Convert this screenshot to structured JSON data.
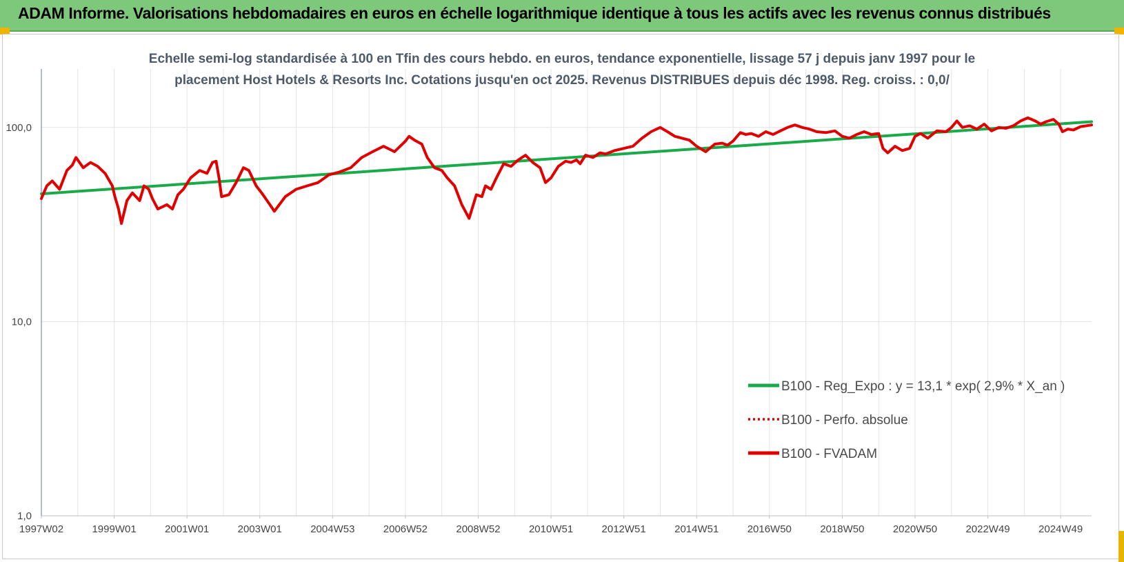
{
  "header": {
    "title": "ADAM Informe. Valorisations hebdomadaires en euros en échelle logarithmique identique à tous les actifs avec les revenus connus distribués",
    "background": "#7dc87a"
  },
  "chart_data": {
    "type": "line",
    "title_lines": [
      "Echelle semi-log standardisée à 100 en Tfin des cours hebdo. en euros, tendance exponentielle, lissage 57 j depuis janv 1997 pour le",
      "placement Host Hotels & Resorts Inc. Cotations jusqu'en oct 2025. Revenus DISTRIBUES depuis déc 1998. Reg. croiss. : 0,0/"
    ],
    "y_scale": "log",
    "ylim": [
      1,
      200
    ],
    "xlim": [
      1997.0,
      2025.85
    ],
    "y_ticks": [
      {
        "value": 1,
        "label": "1,0"
      },
      {
        "value": 10,
        "label": "10,0"
      },
      {
        "value": 100,
        "label": "100,0"
      }
    ],
    "x_ticks": [
      {
        "value": 1997.0,
        "label": "1997W02"
      },
      {
        "value": 1999.0,
        "label": "1999W01"
      },
      {
        "value": 2001.0,
        "label": "2001W01"
      },
      {
        "value": 2003.0,
        "label": "2003W01"
      },
      {
        "value": 2005.0,
        "label": "2004W53"
      },
      {
        "value": 2007.0,
        "label": "2006W52"
      },
      {
        "value": 2009.0,
        "label": "2008W52"
      },
      {
        "value": 2011.0,
        "label": "2010W51"
      },
      {
        "value": 2013.0,
        "label": "2012W51"
      },
      {
        "value": 2015.0,
        "label": "2014W51"
      },
      {
        "value": 2017.0,
        "label": "2016W50"
      },
      {
        "value": 2019.0,
        "label": "2018W50"
      },
      {
        "value": 2021.0,
        "label": "2020W50"
      },
      {
        "value": 2023.0,
        "label": "2022W49"
      },
      {
        "value": 2025.0,
        "label": "2024W49"
      }
    ],
    "grid": true,
    "legend_position": "bottom-right",
    "series": [
      {
        "name": "B100 - Reg_Expo : y = 13,1 * exp( 2,9% *  X_an )",
        "color": "#1aaa4a",
        "style": "solid",
        "x": [
          1997.0,
          2025.85
        ],
        "y": [
          45.5,
          107
        ]
      },
      {
        "name": "B100 - Perfo. absolue",
        "color": "#e00000",
        "style": "dotted",
        "x": [],
        "y": []
      },
      {
        "name": "B100 - FVADAM",
        "color": "#e00000",
        "style": "solid",
        "x": [
          1997.0,
          1997.15,
          1997.3,
          1997.5,
          1997.7,
          1997.85,
          1997.95,
          1998.15,
          1998.35,
          1998.55,
          1998.75,
          1998.95,
          1999.02,
          1999.12,
          1999.2,
          1999.35,
          1999.5,
          1999.7,
          1999.82,
          1999.95,
          2000.05,
          2000.2,
          2000.45,
          2000.6,
          2000.75,
          2000.9,
          2001.1,
          2001.35,
          2001.55,
          2001.7,
          2001.8,
          2001.88,
          2001.95,
          2002.15,
          2002.35,
          2002.55,
          2002.7,
          2002.9,
          2003.05,
          2003.2,
          2003.4,
          2003.7,
          2004.0,
          2004.3,
          2004.6,
          2004.9,
          2005.2,
          2005.5,
          2005.8,
          2006.1,
          2006.4,
          2006.7,
          2007.0,
          2007.1,
          2007.25,
          2007.45,
          2007.6,
          2007.8,
          2008.0,
          2008.15,
          2008.35,
          2008.55,
          2008.75,
          2008.95,
          2009.1,
          2009.2,
          2009.35,
          2009.5,
          2009.7,
          2009.9,
          2010.1,
          2010.3,
          2010.5,
          2010.7,
          2010.85,
          2011.0,
          2011.2,
          2011.4,
          2011.55,
          2011.7,
          2011.8,
          2011.95,
          2012.15,
          2012.35,
          2012.5,
          2012.75,
          2013.0,
          2013.25,
          2013.5,
          2013.75,
          2014.0,
          2014.2,
          2014.4,
          2014.6,
          2014.8,
          2015.0,
          2015.25,
          2015.5,
          2015.7,
          2015.85,
          2016.0,
          2016.2,
          2016.35,
          2016.5,
          2016.7,
          2016.9,
          2017.1,
          2017.3,
          2017.5,
          2017.7,
          2017.9,
          2018.1,
          2018.3,
          2018.55,
          2018.8,
          2019.0,
          2019.2,
          2019.4,
          2019.6,
          2019.8,
          2020.0,
          2020.12,
          2020.25,
          2020.45,
          2020.65,
          2020.85,
          2021.0,
          2021.15,
          2021.35,
          2021.6,
          2021.85,
          2022.0,
          2022.15,
          2022.3,
          2022.5,
          2022.7,
          2022.9,
          2023.1,
          2023.3,
          2023.5,
          2023.7,
          2023.9,
          2024.1,
          2024.3,
          2024.45,
          2024.6,
          2024.8,
          2024.95,
          2025.05,
          2025.2,
          2025.35,
          2025.55,
          2025.85
        ],
        "y": [
          43,
          50,
          53,
          48,
          60,
          64,
          70,
          62,
          66,
          63,
          58,
          50,
          44,
          38,
          32,
          42,
          46,
          42,
          50,
          48,
          43,
          38,
          40,
          38,
          45,
          48,
          55,
          60,
          58,
          66,
          67,
          55,
          44,
          45,
          52,
          62,
          60,
          50,
          46,
          42,
          37,
          44,
          48,
          50,
          52,
          57,
          59,
          62,
          70,
          75,
          80,
          75,
          85,
          90,
          86,
          82,
          70,
          62,
          60,
          55,
          50,
          40,
          34,
          45,
          44,
          50,
          48,
          55,
          65,
          63,
          68,
          72,
          66,
          62,
          52,
          55,
          63,
          67,
          66,
          68,
          65,
          72,
          70,
          74,
          73,
          76,
          78,
          80,
          88,
          95,
          100,
          95,
          90,
          88,
          86,
          80,
          75,
          82,
          83,
          81,
          85,
          94,
          92,
          93,
          90,
          95,
          92,
          96,
          100,
          103,
          100,
          98,
          95,
          94,
          96,
          90,
          88,
          92,
          95,
          92,
          93,
          78,
          74,
          80,
          76,
          78,
          90,
          93,
          88,
          96,
          95,
          100,
          108,
          100,
          102,
          98,
          104,
          96,
          100,
          99,
          102,
          108,
          112,
          108,
          104,
          107,
          110,
          104,
          95,
          98,
          97,
          101,
          103
        ]
      }
    ]
  }
}
